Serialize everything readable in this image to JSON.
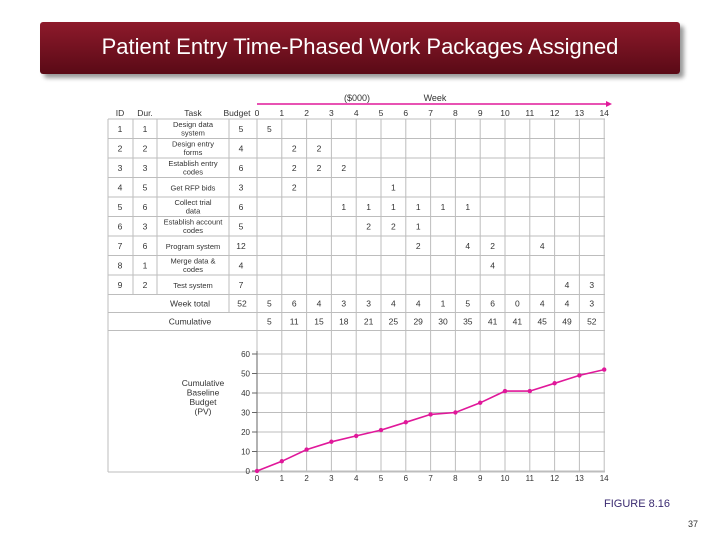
{
  "slide": {
    "title": "Patient Entry Time-Phased Work Packages Assigned",
    "figure_label": "FIGURE 8.16",
    "page_number": "37"
  },
  "colors": {
    "banner": "#7a1222",
    "accent": "#e0189a",
    "grid": "#bdbdbd"
  },
  "chart_data": {
    "type": "table",
    "units_label": "($000)",
    "week_label": "Week",
    "headers": {
      "id": "ID",
      "dur": "Dur.",
      "task": "Task",
      "budget": "Budget"
    },
    "weeks": [
      "0",
      "1",
      "2",
      "3",
      "4",
      "5",
      "6",
      "7",
      "8",
      "9",
      "10",
      "11",
      "12",
      "13",
      "14"
    ],
    "rows": [
      {
        "id": "1",
        "dur": "1",
        "task": [
          "Design data",
          "system"
        ],
        "budget": "5",
        "cells": {
          "1": "5"
        }
      },
      {
        "id": "2",
        "dur": "2",
        "task": [
          "Design entry",
          "forms"
        ],
        "budget": "4",
        "cells": {
          "2": "2",
          "3": "2"
        }
      },
      {
        "id": "3",
        "dur": "3",
        "task": [
          "Establish entry",
          "codes"
        ],
        "budget": "6",
        "cells": {
          "2": "2",
          "3": "2",
          "4": "2"
        }
      },
      {
        "id": "4",
        "dur": "5",
        "task": [
          "Get RFP bids"
        ],
        "budget": "3",
        "cells": {
          "2": "2",
          "6": "1"
        }
      },
      {
        "id": "5",
        "dur": "6",
        "task": [
          "Collect trial",
          "data"
        ],
        "budget": "6",
        "cells": {
          "4": "1",
          "5": "1",
          "6": "1",
          "7": "1",
          "8": "1",
          "9": "1"
        }
      },
      {
        "id": "6",
        "dur": "3",
        "task": [
          "Establish account",
          "codes"
        ],
        "budget": "5",
        "cells": {
          "5": "2",
          "6": "2",
          "7": "1"
        }
      },
      {
        "id": "7",
        "dur": "6",
        "task": [
          "Program system"
        ],
        "budget": "12",
        "cells": {
          "7": "2",
          "9": "4",
          "10": "2",
          "12": "4"
        }
      },
      {
        "id": "8",
        "dur": "1",
        "task": [
          "Merge data &",
          "codes"
        ],
        "budget": "4",
        "cells": {
          "10": "4"
        }
      },
      {
        "id": "9",
        "dur": "2",
        "task": [
          "Test system"
        ],
        "budget": "7",
        "cells": {
          "13": "4",
          "14": "3"
        }
      }
    ],
    "week_total": {
      "label": "Week total",
      "budget": "52",
      "values": [
        "5",
        "6",
        "4",
        "3",
        "3",
        "4",
        "4",
        "1",
        "5",
        "6",
        "0",
        "4",
        "4",
        "3"
      ]
    },
    "cumulative": {
      "label": "Cumulative",
      "values": [
        "5",
        "11",
        "15",
        "18",
        "21",
        "25",
        "29",
        "30",
        "35",
        "41",
        "41",
        "45",
        "49",
        "52"
      ]
    },
    "line": {
      "type": "line",
      "ylabel": [
        "Cumulative",
        "Baseline",
        "Budget",
        "(PV)"
      ],
      "xlim": [
        0,
        14
      ],
      "ylim": [
        0,
        60
      ],
      "y_ticks": [
        "0",
        "10",
        "20",
        "30",
        "40",
        "50",
        "60"
      ],
      "x_ticks": [
        "0",
        "1",
        "2",
        "3",
        "4",
        "5",
        "6",
        "7",
        "8",
        "9",
        "10",
        "11",
        "12",
        "13",
        "14"
      ],
      "x": [
        0,
        1,
        2,
        3,
        4,
        5,
        6,
        7,
        8,
        9,
        10,
        11,
        12,
        13,
        14
      ],
      "y": [
        0,
        5,
        11,
        15,
        18,
        21,
        25,
        29,
        30,
        35,
        41,
        41,
        45,
        49,
        52
      ],
      "grid": true
    }
  }
}
